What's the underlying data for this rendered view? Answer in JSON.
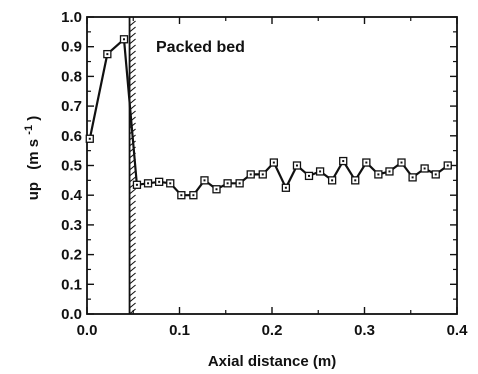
{
  "chart_data": {
    "type": "line",
    "title": "",
    "xlabel": "Axial distance (m)",
    "ylabel_main": "up",
    "ylabel_unit": "(m s",
    "ylabel_exp": "-1",
    "ylabel_close": ")",
    "xlim": [
      0.0,
      0.4
    ],
    "ylim": [
      0.0,
      1.0
    ],
    "x_ticks": [
      {
        "value": 0.0,
        "label": "0.0"
      },
      {
        "value": 0.1,
        "label": "0.1"
      },
      {
        "value": 0.2,
        "label": "0.2"
      },
      {
        "value": 0.3,
        "label": "0.3"
      },
      {
        "value": 0.4,
        "label": "0.4"
      }
    ],
    "y_ticks": [
      {
        "value": 0.0,
        "label": "0.0"
      },
      {
        "value": 0.1,
        "label": "0.1"
      },
      {
        "value": 0.2,
        "label": "0.2"
      },
      {
        "value": 0.3,
        "label": "0.3"
      },
      {
        "value": 0.4,
        "label": "0.4"
      },
      {
        "value": 0.5,
        "label": "0.5"
      },
      {
        "value": 0.6,
        "label": "0.6"
      },
      {
        "value": 0.7,
        "label": "0.7"
      },
      {
        "value": 0.8,
        "label": "0.8"
      },
      {
        "value": 0.9,
        "label": "0.9"
      },
      {
        "value": 1.0,
        "label": "1.0"
      }
    ],
    "annotation": "Packed bed",
    "packed_bed_start_x": 0.046,
    "grid": false,
    "marker": "open-square",
    "line_color": "#111111",
    "series": [
      {
        "x": [
          0.003,
          0.022,
          0.04,
          0.054,
          0.066,
          0.078,
          0.09,
          0.102,
          0.115,
          0.127,
          0.14,
          0.152,
          0.165,
          0.177,
          0.19,
          0.202,
          0.215,
          0.227,
          0.24,
          0.252,
          0.265,
          0.277,
          0.29,
          0.302,
          0.315,
          0.327,
          0.34,
          0.352,
          0.365,
          0.377,
          0.39
        ],
        "y": [
          0.59,
          0.875,
          0.925,
          0.435,
          0.44,
          0.445,
          0.44,
          0.4,
          0.4,
          0.45,
          0.42,
          0.44,
          0.44,
          0.47,
          0.47,
          0.51,
          0.425,
          0.5,
          0.465,
          0.48,
          0.45,
          0.515,
          0.45,
          0.51,
          0.47,
          0.48,
          0.51,
          0.46,
          0.49,
          0.47,
          0.5
        ]
      }
    ]
  }
}
